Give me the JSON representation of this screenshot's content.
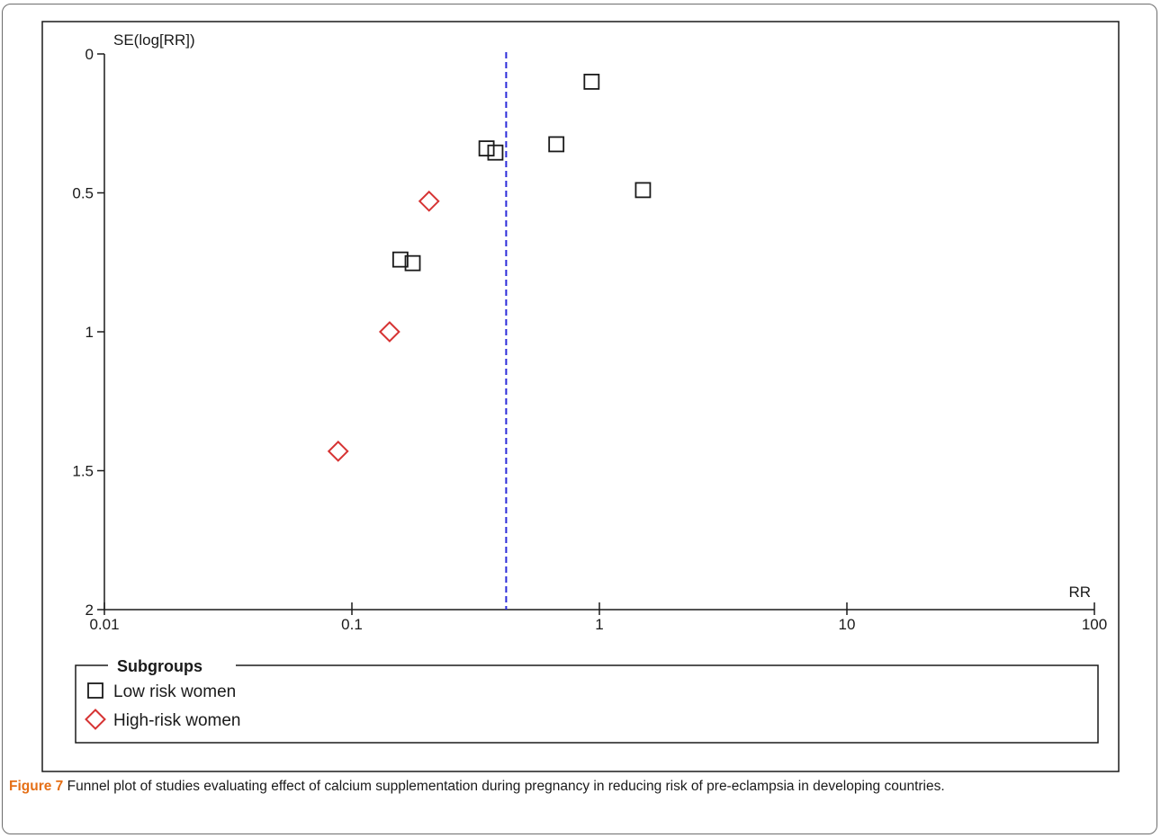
{
  "chart_data": {
    "type": "scatter",
    "title": "",
    "xlabel": "RR",
    "ylabel": "SE(log[RR])",
    "x_scale": "log",
    "xlim": [
      0.01,
      100
    ],
    "ylim": [
      0,
      2
    ],
    "y_reversed": true,
    "x_ticks": [
      "0.01",
      "0.1",
      "1",
      "10",
      "100"
    ],
    "y_ticks": [
      "0",
      "0.5",
      "1",
      "1.5",
      "2"
    ],
    "reference_line": {
      "x": 0.42,
      "style": "dashed",
      "color": "#2b2bd9"
    },
    "grid": false,
    "legend": {
      "title": "Subgroups",
      "placement": "bottom",
      "entries": [
        "Low risk women",
        "High-risk women"
      ]
    },
    "series": [
      {
        "name": "Low risk women",
        "marker": "square",
        "color": "#1a1a1a",
        "points": [
          {
            "x": 0.93,
            "y": 0.1
          },
          {
            "x": 0.35,
            "y": 0.34
          },
          {
            "x": 0.38,
            "y": 0.355
          },
          {
            "x": 0.67,
            "y": 0.325
          },
          {
            "x": 1.5,
            "y": 0.49
          },
          {
            "x": 0.157,
            "y": 0.74
          },
          {
            "x": 0.176,
            "y": 0.753
          }
        ]
      },
      {
        "name": "High-risk women",
        "marker": "diamond",
        "color": "#d63333",
        "points": [
          {
            "x": 0.205,
            "y": 0.53
          },
          {
            "x": 0.142,
            "y": 1.0
          },
          {
            "x": 0.088,
            "y": 1.43
          }
        ]
      }
    ]
  },
  "caption": {
    "label": "Figure 7",
    "text": "Funnel plot of studies evaluating effect of calcium supplementation during pregnancy in reducing risk of pre-eclampsia in developing countries."
  }
}
